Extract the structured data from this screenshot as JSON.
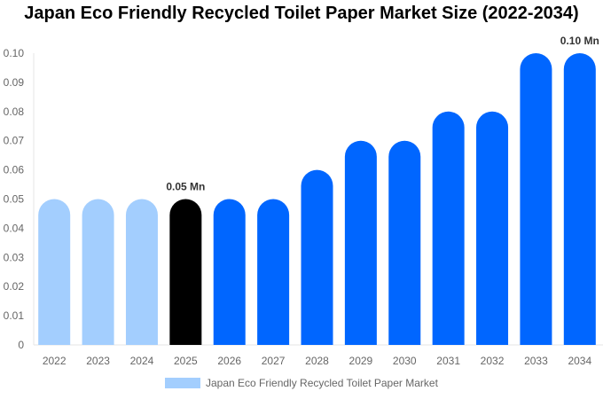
{
  "chart_data": {
    "type": "bar",
    "title": "Japan Eco Friendly Recycled Toilet Paper Market Size (2022-2034)",
    "categories": [
      "2022",
      "2023",
      "2024",
      "2025",
      "2026",
      "2027",
      "2028",
      "2029",
      "2030",
      "2031",
      "2032",
      "2033",
      "2034"
    ],
    "values": [
      0.05,
      0.05,
      0.05,
      0.05,
      0.05,
      0.05,
      0.06,
      0.07,
      0.07,
      0.08,
      0.08,
      0.1,
      0.1
    ],
    "bar_colors": [
      "#a3cefe",
      "#a3cefe",
      "#a3cefe",
      "#000000",
      "#0066ff",
      "#0066ff",
      "#0066ff",
      "#0066ff",
      "#0066ff",
      "#0066ff",
      "#0066ff",
      "#0066ff",
      "#0066ff"
    ],
    "data_labels": [
      {
        "category": "2025",
        "text": "0.05 Mn"
      },
      {
        "category": "2034",
        "text": "0.10 Mn"
      }
    ],
    "yticks": [
      "0",
      "0.01",
      "0.02",
      "0.03",
      "0.04",
      "0.05",
      "0.06",
      "0.07",
      "0.08",
      "0.09",
      "0.10"
    ],
    "ylim": [
      0,
      0.1
    ],
    "grid": false,
    "legend": {
      "position": "bottom",
      "label": "Japan Eco Friendly Recycled Toilet Paper Market",
      "color": "#a3cefe"
    }
  }
}
